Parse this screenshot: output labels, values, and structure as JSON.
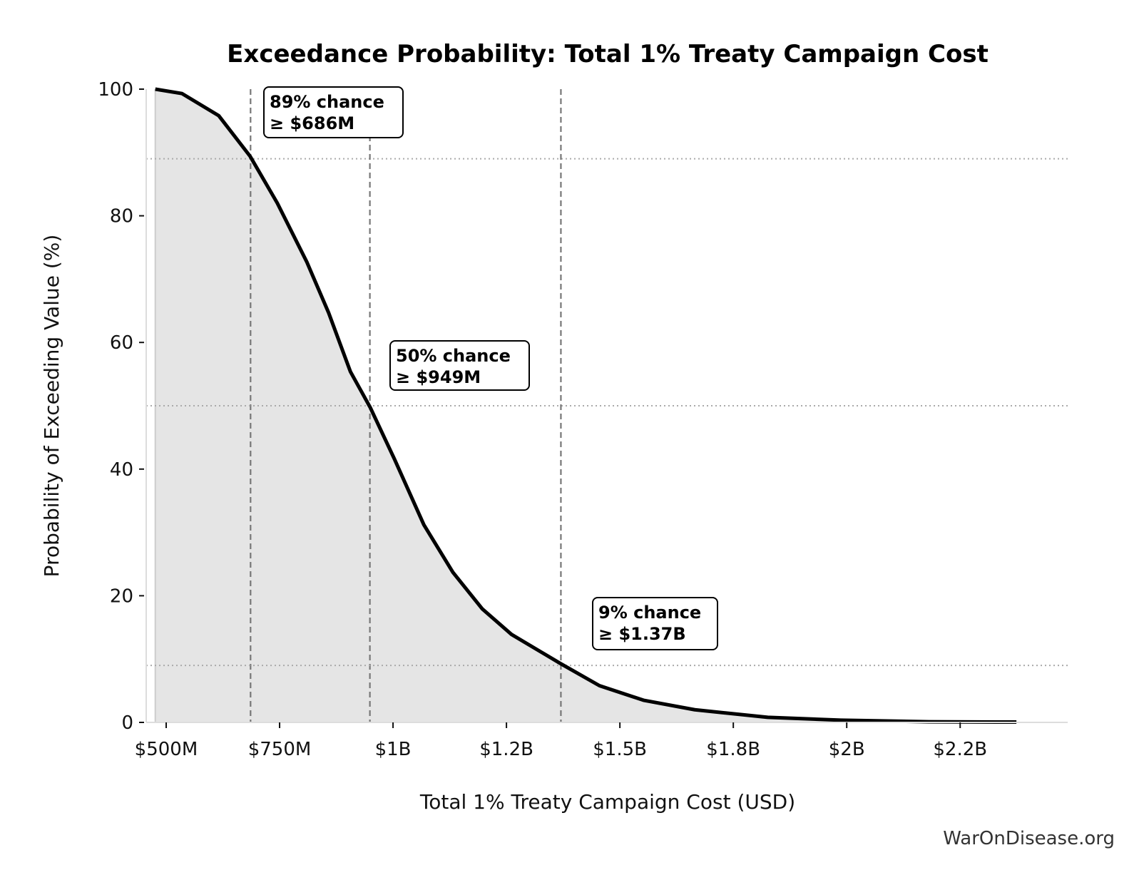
{
  "chart_data": {
    "type": "area",
    "title": "Exceedance Probability: Total 1% Treaty Campaign Cost",
    "xlabel": "Total 1% Treaty Campaign Cost (USD)",
    "ylabel": "Probability of Exceeding Value (%)",
    "xlim": [
      456,
      2487
    ],
    "ylim": [
      0,
      100
    ],
    "x_unit": "USD millions",
    "x_ticks": [
      {
        "value": 500,
        "label": "$500M"
      },
      {
        "value": 750,
        "label": "$750M"
      },
      {
        "value": 1000,
        "label": "$1B"
      },
      {
        "value": 1250,
        "label": "$1.2B"
      },
      {
        "value": 1500,
        "label": "$1.5B"
      },
      {
        "value": 1750,
        "label": "$1.8B"
      },
      {
        "value": 2000,
        "label": "$2B"
      },
      {
        "value": 2250,
        "label": "$2.2B"
      }
    ],
    "y_ticks": [
      {
        "value": 0,
        "label": "0"
      },
      {
        "value": 20,
        "label": "20"
      },
      {
        "value": 40,
        "label": "40"
      },
      {
        "value": 60,
        "label": "60"
      },
      {
        "value": 80,
        "label": "80"
      },
      {
        "value": 100,
        "label": "100"
      }
    ],
    "grid": false,
    "series": [
      {
        "color": "#000000",
        "fill_color": "#e5e5e5",
        "x": [
          476,
          535,
          616,
          685,
          745,
          810,
          858,
          906,
          950,
          1003,
          1068,
          1132,
          1197,
          1261,
          1369,
          1455,
          1552,
          1665,
          1826,
          1987,
          2181,
          2374
        ],
        "y": [
          100,
          99.3,
          95.8,
          89.4,
          82,
          72.7,
          64.7,
          55.4,
          49.7,
          41.6,
          31.2,
          23.7,
          17.9,
          13.9,
          9.3,
          5.8,
          3.5,
          2.0,
          0.8,
          0.35,
          0.1,
          0.05
        ]
      }
    ],
    "reference_lines": [
      {
        "x": 686,
        "y": 89,
        "line1": "89% chance",
        "line2": "≥ $686M"
      },
      {
        "x": 949,
        "y": 50,
        "line1": "50% chance",
        "line2": "≥ $949M"
      },
      {
        "x": 1370,
        "y": 9,
        "line1": "9% chance",
        "line2": "≥ $1.37B"
      }
    ]
  },
  "watermark": "WarOnDisease.org"
}
